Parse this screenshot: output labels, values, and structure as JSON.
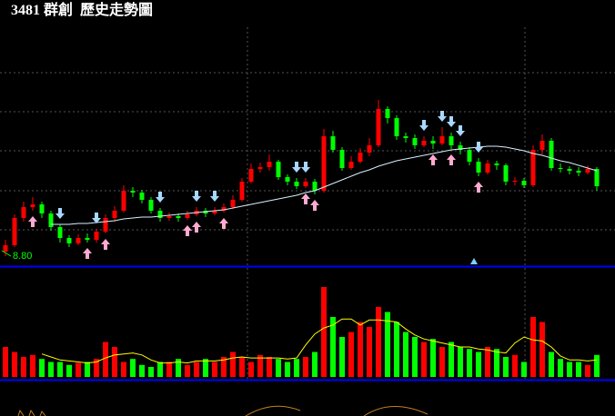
{
  "chart_data": {
    "type": "candlestick",
    "title": "3481 群創  歷史走勢圖",
    "low_label": {
      "value": 8.8,
      "label": "8.80"
    },
    "ylim": [
      8.7,
      11.32
    ],
    "vlim": [
      0,
      100
    ],
    "grid": true,
    "up_color": "#ff0000",
    "down_color": "#00ff00",
    "ma_color": "#d8f0ff",
    "vma_color": "#ffff00",
    "candles": [
      [
        8.85,
        8.98,
        8.8,
        8.92
      ],
      [
        8.92,
        9.26,
        8.9,
        9.22
      ],
      [
        9.22,
        9.4,
        9.18,
        9.34
      ],
      [
        9.34,
        9.45,
        9.3,
        9.37
      ],
      [
        9.37,
        9.4,
        9.22,
        9.27
      ],
      [
        9.27,
        9.3,
        9.08,
        9.12
      ],
      [
        9.12,
        9.15,
        8.95,
        9.0
      ],
      [
        9.0,
        9.03,
        8.9,
        8.94
      ],
      [
        8.94,
        9.04,
        8.92,
        9.0
      ],
      [
        9.0,
        9.05,
        8.95,
        8.98
      ],
      [
        8.98,
        9.1,
        8.95,
        9.07
      ],
      [
        9.07,
        9.26,
        9.05,
        9.22
      ],
      [
        9.22,
        9.35,
        9.18,
        9.3
      ],
      [
        9.3,
        9.58,
        9.28,
        9.52
      ],
      [
        9.52,
        9.56,
        9.45,
        9.5
      ],
      [
        9.5,
        9.53,
        9.38,
        9.42
      ],
      [
        9.42,
        9.45,
        9.27,
        9.3
      ],
      [
        9.3,
        9.33,
        9.18,
        9.22
      ],
      [
        9.22,
        9.28,
        9.19,
        9.24
      ],
      [
        9.24,
        9.27,
        9.18,
        9.22
      ],
      [
        9.22,
        9.3,
        9.2,
        9.26
      ],
      [
        9.26,
        9.34,
        9.24,
        9.3
      ],
      [
        9.3,
        9.33,
        9.23,
        9.27
      ],
      [
        9.27,
        9.34,
        9.25,
        9.3
      ],
      [
        9.3,
        9.38,
        9.28,
        9.34
      ],
      [
        9.34,
        9.47,
        9.32,
        9.42
      ],
      [
        9.42,
        9.66,
        9.4,
        9.62
      ],
      [
        9.62,
        9.82,
        9.6,
        9.76
      ],
      [
        9.76,
        9.83,
        9.72,
        9.78
      ],
      [
        9.78,
        9.92,
        9.74,
        9.84
      ],
      [
        9.84,
        9.86,
        9.64,
        9.67
      ],
      [
        9.67,
        9.7,
        9.58,
        9.62
      ],
      [
        9.62,
        9.66,
        9.54,
        9.57
      ],
      [
        9.57,
        9.66,
        9.55,
        9.62
      ],
      [
        9.62,
        9.65,
        9.48,
        9.52
      ],
      [
        9.52,
        10.2,
        9.5,
        10.12
      ],
      [
        10.12,
        10.18,
        9.94,
        9.97
      ],
      [
        9.97,
        10.0,
        9.74,
        9.77
      ],
      [
        9.77,
        9.9,
        9.75,
        9.84
      ],
      [
        9.84,
        9.99,
        9.82,
        9.94
      ],
      [
        9.94,
        10.1,
        9.9,
        10.02
      ],
      [
        10.02,
        10.52,
        10.0,
        10.42
      ],
      [
        10.42,
        10.45,
        10.26,
        10.32
      ],
      [
        10.32,
        10.35,
        10.08,
        10.12
      ],
      [
        10.12,
        10.16,
        10.05,
        10.1
      ],
      [
        10.1,
        10.14,
        9.98,
        10.02
      ],
      [
        10.02,
        10.12,
        10.0,
        10.07
      ],
      [
        10.07,
        10.12,
        9.98,
        10.04
      ],
      [
        10.04,
        10.22,
        10.02,
        10.12
      ],
      [
        10.12,
        10.16,
        9.98,
        10.02
      ],
      [
        10.02,
        10.06,
        9.92,
        9.97
      ],
      [
        9.97,
        10.0,
        9.8,
        9.84
      ],
      [
        9.84,
        9.88,
        9.68,
        9.72
      ],
      [
        9.72,
        9.86,
        9.7,
        9.82
      ],
      [
        9.82,
        9.85,
        9.75,
        9.8
      ],
      [
        9.8,
        9.82,
        9.58,
        9.62
      ],
      [
        9.62,
        9.67,
        9.58,
        9.63
      ],
      [
        9.63,
        9.66,
        9.55,
        9.58
      ],
      [
        9.58,
        10.02,
        9.56,
        9.97
      ],
      [
        9.97,
        10.14,
        9.92,
        10.07
      ],
      [
        10.07,
        10.1,
        9.74,
        9.77
      ],
      [
        9.77,
        9.82,
        9.72,
        9.76
      ],
      [
        9.76,
        9.79,
        9.7,
        9.74
      ],
      [
        9.74,
        9.78,
        9.68,
        9.72
      ],
      [
        9.72,
        9.8,
        9.7,
        9.76
      ],
      [
        9.76,
        9.78,
        9.52,
        9.57
      ]
    ],
    "ma": [
      null,
      null,
      null,
      null,
      null,
      9.15,
      9.15,
      9.15,
      9.16,
      9.16,
      9.17,
      9.18,
      9.19,
      9.21,
      9.22,
      9.23,
      9.23,
      9.24,
      9.25,
      9.26,
      9.27,
      9.28,
      9.29,
      9.3,
      9.31,
      9.33,
      9.35,
      9.37,
      9.39,
      9.41,
      9.43,
      9.45,
      9.47,
      9.5,
      9.52,
      9.56,
      9.6,
      9.64,
      9.68,
      9.72,
      9.75,
      9.79,
      9.82,
      9.85,
      9.87,
      9.89,
      9.91,
      9.93,
      9.95,
      9.97,
      9.98,
      9.99,
      10.0,
      10.01,
      10.01,
      10.0,
      9.98,
      9.96,
      9.93,
      9.91,
      9.88,
      9.85,
      9.83,
      9.8,
      9.77,
      9.74
    ],
    "volume": [
      30,
      25,
      20,
      22,
      18,
      15,
      15,
      12,
      14,
      15,
      18,
      35,
      30,
      15,
      18,
      12,
      10,
      15,
      15,
      18,
      12,
      15,
      18,
      15,
      20,
      25,
      20,
      15,
      22,
      20,
      18,
      15,
      18,
      20,
      25,
      90,
      60,
      40,
      45,
      55,
      50,
      70,
      65,
      55,
      45,
      40,
      35,
      38,
      30,
      35,
      30,
      28,
      25,
      30,
      28,
      20,
      22,
      15,
      60,
      55,
      25,
      18,
      15,
      15,
      12,
      22
    ],
    "volume_ma": [
      null,
      null,
      null,
      null,
      23,
      20,
      17,
      16,
      15,
      14,
      15,
      19,
      22,
      23,
      24,
      22,
      17,
      14,
      14,
      15,
      14,
      16,
      16,
      16,
      17,
      19,
      20,
      19,
      19,
      19,
      19,
      18,
      19,
      32,
      43,
      49,
      52,
      58,
      58,
      52,
      57,
      57,
      56,
      55,
      48,
      42,
      38,
      36,
      34,
      32,
      30,
      30,
      28,
      27,
      25,
      24,
      34,
      40,
      37,
      36,
      30,
      21,
      17,
      17,
      16,
      17
    ],
    "buy_signals": [
      3,
      9,
      11,
      20,
      21,
      24,
      33,
      34,
      47,
      49,
      52
    ],
    "sell_signals": [
      6,
      10,
      17,
      21,
      23,
      32,
      33,
      46,
      48,
      49,
      50,
      52
    ]
  }
}
